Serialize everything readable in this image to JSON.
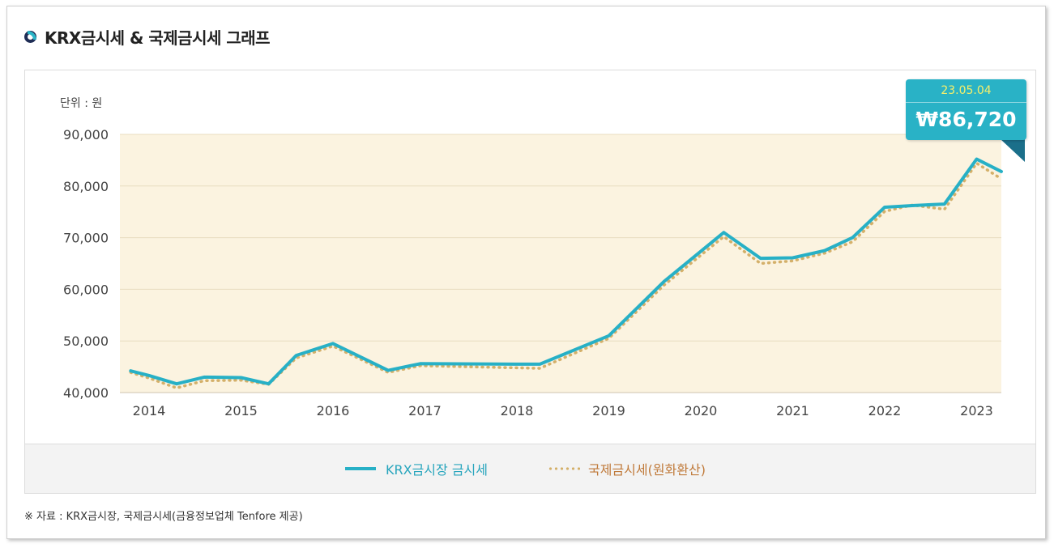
{
  "title": "KRX금시세 & 국제금시세 그래프",
  "unit_label": "단위 : 원",
  "callout": {
    "date": "23.05.04",
    "value": "₩86,720"
  },
  "legend": {
    "krx": "KRX금시장 금시세",
    "intl": "국제금시세(원화환산)"
  },
  "source": "※ 자료 : KRX금시장, 국제금시세(금융정보업체 Tenfore 제공)",
  "colors": {
    "krx_line": "#27b0c6",
    "intl_line": "#d4b06a",
    "plot_bg": "#fbf3e0",
    "grid": "#e8dcc0",
    "krx_legend_text": "#27a5bd",
    "intl_legend_text": "#c07a3a"
  },
  "chart_data": {
    "type": "line",
    "ylim": [
      40000,
      90000
    ],
    "y_ticks": [
      "40,000",
      "50,000",
      "60,000",
      "70,000",
      "80,000",
      "90,000"
    ],
    "x_ticks": [
      "2014",
      "2015",
      "2016",
      "2017",
      "2018",
      "2019",
      "2020",
      "2021",
      "2022",
      "2023"
    ],
    "x": [
      2013.8,
      2014.0,
      2014.3,
      2014.6,
      2015.0,
      2015.3,
      2015.6,
      2016.0,
      2016.6,
      2016.95,
      2018.0,
      2018.25,
      2019.0,
      2019.6,
      2020.25,
      2020.65,
      2021.0,
      2021.35,
      2021.65,
      2022.0,
      2022.3,
      2022.65,
      2023.0,
      2023.35
    ],
    "series": [
      {
        "name": "KRX금시장 금시세",
        "values": [
          44200,
          43300,
          41700,
          43000,
          42900,
          41700,
          47200,
          49500,
          44300,
          45600,
          45500,
          45500,
          51000,
          61500,
          71000,
          66000,
          66100,
          67500,
          70000,
          75900,
          76200,
          76500,
          85200,
          82800
        ]
      },
      {
        "name": "국제금시세(원화환산)",
        "values": [
          43900,
          42800,
          40900,
          42300,
          42400,
          41600,
          46700,
          49000,
          43900,
          45200,
          44800,
          44700,
          50500,
          60800,
          70200,
          65000,
          65500,
          67000,
          69200,
          75100,
          76300,
          75500,
          84400,
          81400
        ]
      }
    ]
  }
}
